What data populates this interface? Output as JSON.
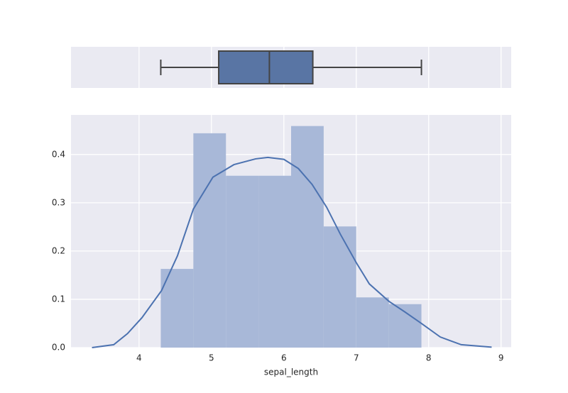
{
  "chart_data": [
    {
      "type": "box",
      "min": 4.3,
      "q1": 5.1,
      "median": 5.8,
      "q3": 6.4,
      "max": 7.9,
      "color": "#5975a4",
      "edgecolor": "#444444",
      "xlim": [
        3.06,
        9.14
      ],
      "xticks": [
        4,
        5,
        6,
        7,
        8,
        9
      ],
      "grid": true
    },
    {
      "type": "histogram",
      "xlabel": "sepal_length",
      "bins": [
        4.3,
        4.75,
        5.2,
        5.65,
        6.1,
        6.55,
        7.0,
        7.45,
        7.9
      ],
      "values": [
        0.163,
        0.444,
        0.356,
        0.356,
        0.459,
        0.251,
        0.104,
        0.09
      ],
      "color": "#a8b8d8",
      "kde": {
        "color": "#4c72b0",
        "x": [
          3.35,
          3.65,
          3.84,
          4.04,
          4.31,
          4.53,
          4.75,
          5.02,
          5.31,
          5.61,
          5.78,
          6.0,
          6.2,
          6.39,
          6.59,
          6.78,
          7.0,
          7.18,
          7.45,
          7.67,
          7.9,
          8.16,
          8.45,
          8.87
        ],
        "y": [
          0.0,
          0.006,
          0.029,
          0.062,
          0.118,
          0.19,
          0.287,
          0.353,
          0.379,
          0.391,
          0.394,
          0.39,
          0.371,
          0.338,
          0.291,
          0.235,
          0.176,
          0.132,
          0.096,
          0.074,
          0.05,
          0.022,
          0.006,
          0.001
        ]
      },
      "xlim": [
        3.06,
        9.14
      ],
      "xticks": [
        4,
        5,
        6,
        7,
        8,
        9
      ],
      "ylim": [
        0,
        0.482
      ],
      "yticks": [
        {
          "value": 0,
          "label": "0.0"
        },
        0.1,
        0.2,
        0.3,
        0.4
      ],
      "grid": true
    }
  ]
}
